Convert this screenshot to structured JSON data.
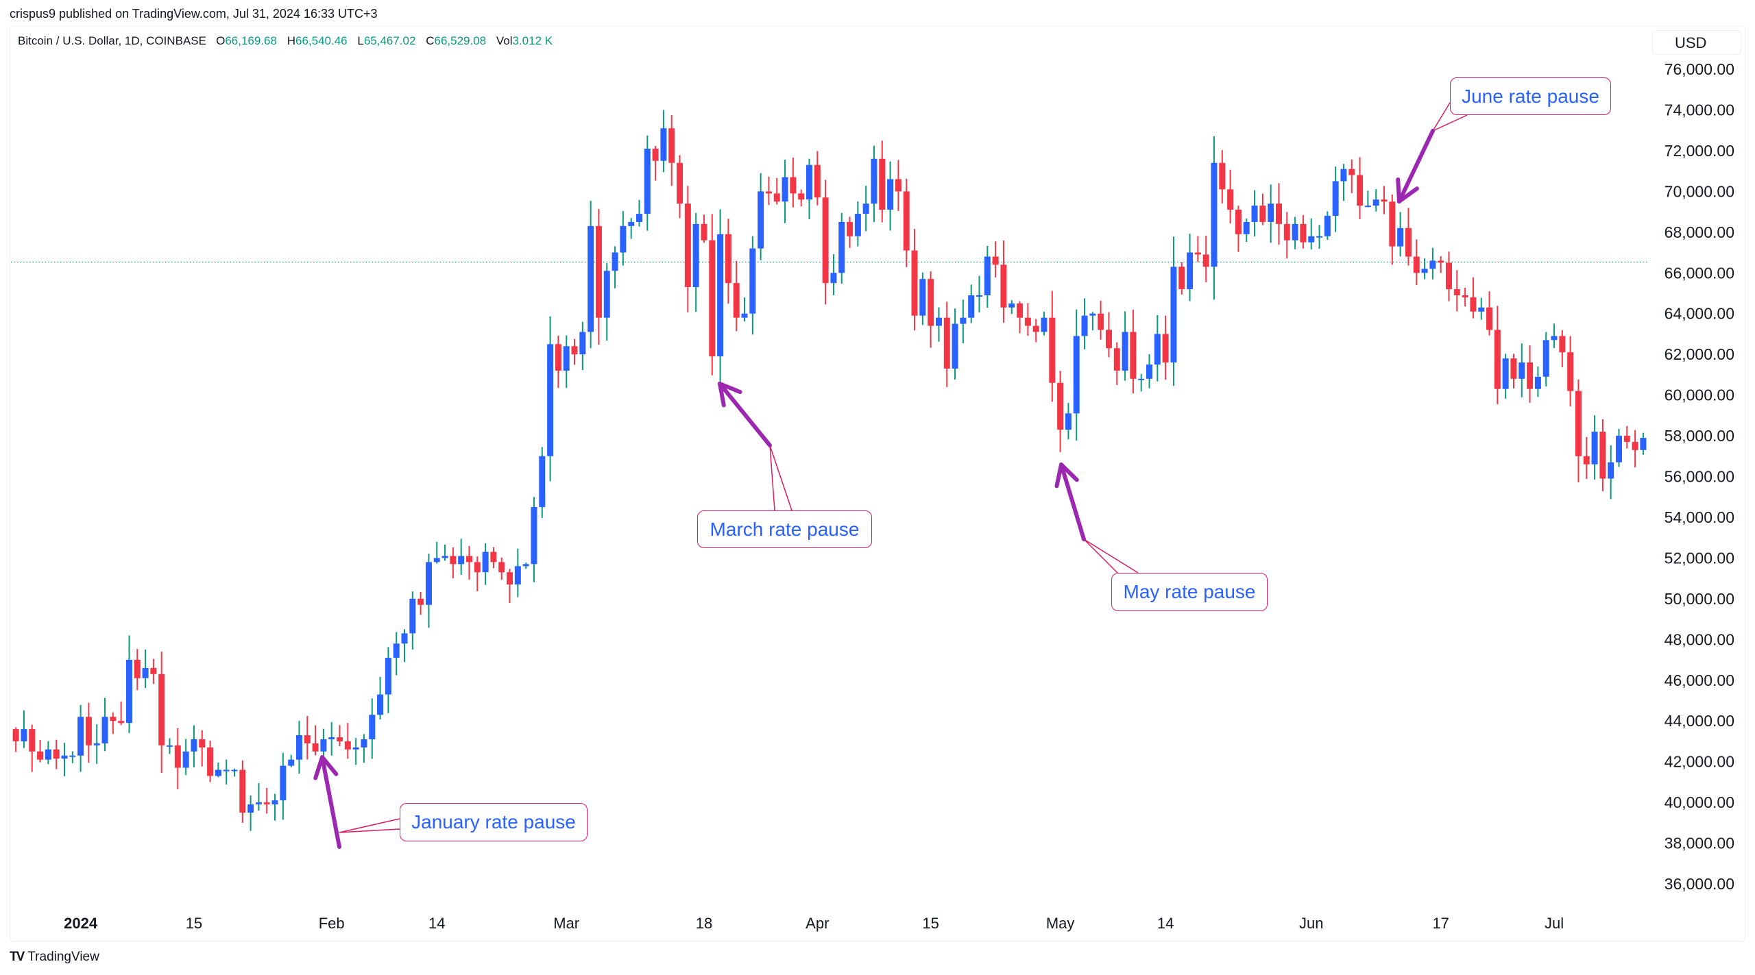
{
  "header": {
    "published": "crispus9 published on TradingView.com, Jul 31, 2024 16:33 UTC+3"
  },
  "legend": {
    "symbol": "Bitcoin / U.S. Dollar, 1D, COINBASE",
    "o_label": "O",
    "o": "66,169.68",
    "h_label": "H",
    "h": "66,540.46",
    "l_label": "L",
    "l": "65,467.02",
    "c_label": "C",
    "c": "66,529.08",
    "vol_label": "Vol",
    "vol": "3.012 K"
  },
  "currency": "USD",
  "footer": {
    "brand": "TradingView"
  },
  "colors": {
    "up_body": "#2962ff",
    "up_wick": "#089981",
    "down": "#f23645",
    "arrow": "#9c27b0",
    "note_border": "#d81b60",
    "note_text": "#2962ff"
  },
  "annotations": [
    {
      "label": "January rate pause"
    },
    {
      "label": "March rate pause"
    },
    {
      "label": "May rate pause"
    },
    {
      "label": "June rate pause"
    }
  ],
  "chart_data": {
    "type": "candlestick",
    "title": "Bitcoin / U.S. Dollar, 1D, COINBASE",
    "start_date": "2023-12-24",
    "ylim": [
      35000,
      77000
    ],
    "last_price_line": 66529.08,
    "y_ticks": [
      "76,000.00",
      "74,000.00",
      "72,000.00",
      "70,000.00",
      "68,000.00",
      "66,000.00",
      "64,000.00",
      "62,000.00",
      "60,000.00",
      "58,000.00",
      "56,000.00",
      "54,000.00",
      "52,000.00",
      "50,000.00",
      "48,000.00",
      "46,000.00",
      "44,000.00",
      "42,000.00",
      "40,000.00",
      "38,000.00",
      "36,000.00"
    ],
    "x_ticks": [
      {
        "label": "2024",
        "day": 0,
        "bold": true
      },
      {
        "label": "15",
        "day": 14
      },
      {
        "label": "Feb",
        "day": 31
      },
      {
        "label": "14",
        "day": 44
      },
      {
        "label": "Mar",
        "day": 60
      },
      {
        "label": "18",
        "day": 77
      },
      {
        "label": "Apr",
        "day": 91
      },
      {
        "label": "15",
        "day": 105
      },
      {
        "label": "May",
        "day": 121
      },
      {
        "label": "14",
        "day": 134
      },
      {
        "label": "Jun",
        "day": 152
      },
      {
        "label": "17",
        "day": 168
      },
      {
        "label": "Jul",
        "day": 182
      }
    ],
    "first_open": 43600,
    "closes": [
      43000,
      43600,
      42500,
      42100,
      42600,
      42150,
      42300,
      42300,
      44200,
      42800,
      42900,
      44200,
      44000,
      43900,
      47000,
      46100,
      46600,
      46300,
      42800,
      42800,
      41700,
      42500,
      43100,
      42700,
      41300,
      41600,
      41600,
      41600,
      39500,
      39900,
      40000,
      39900,
      40100,
      41800,
      42100,
      43300,
      42900,
      42500,
      43100,
      43200,
      43000,
      42600,
      42700,
      43100,
      44300,
      45300,
      47100,
      47800,
      48300,
      50000,
      49700,
      51800,
      52000,
      52100,
      51700,
      52100,
      51800,
      51300,
      52300,
      51800,
      51300,
      50700,
      51600,
      51700,
      54500,
      57000,
      62500,
      61200,
      62400,
      62000,
      63100,
      68300,
      63800,
      66100,
      67000,
      68300,
      68500,
      68900,
      72100,
      71500,
      73100,
      71400,
      69400,
      65300,
      68400,
      67600,
      61900,
      67900,
      65500,
      63800,
      64000,
      67200,
      70000,
      69900,
      69500,
      70700,
      69900,
      69600,
      71300,
      69700,
      65500,
      66000,
      68500,
      67800,
      68900,
      69400,
      71600,
      69100,
      70600,
      70000,
      67100,
      63900,
      65700,
      63400,
      63800,
      61300,
      63500,
      63800,
      64900,
      64900,
      66800,
      66400,
      64300,
      64500,
      63800,
      63400,
      63100,
      63800,
      60600,
      58300,
      59100,
      62900,
      63900,
      64000,
      63200,
      62300,
      61200,
      63100,
      60800,
      60800,
      61500,
      63000,
      61600,
      66300,
      65200,
      67000,
      66900,
      66300,
      71400,
      70100,
      69100,
      67900,
      68500,
      69300,
      68500,
      69400,
      68400,
      67600,
      68400,
      67500,
      67800,
      67800,
      68800,
      70500,
      71100,
      70800,
      69300,
      69300,
      69600,
      69500,
      67300,
      68200,
      66800,
      66000,
      66200,
      66600,
      66500,
      65200,
      64900,
      64800,
      64100,
      64300,
      63200,
      60300,
      61800,
      60800,
      61600,
      60300,
      60900,
      62700,
      62900,
      62100,
      60200,
      57000,
      56600,
      58200,
      55900,
      56700,
      58000,
      57700,
      57300,
      57900
    ]
  }
}
